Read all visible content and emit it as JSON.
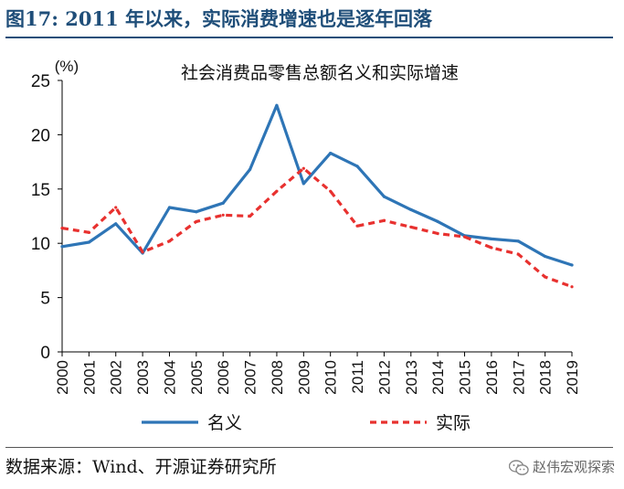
{
  "figure": {
    "label": "图17:",
    "title": "2011 年以来，实际消费增速也是逐年回落",
    "source": "数据来源：Wind、开源证券研究所",
    "watermark": "赵伟宏观探索"
  },
  "colors": {
    "title": "#1f4e79",
    "nominal": "#2e75b6",
    "real": "#e8312f",
    "axis": "#000000"
  },
  "chart_data": {
    "type": "line",
    "title": "社会消费品零售总额名义和实际增速",
    "unit_label": "(%)",
    "x": [
      "2000",
      "2001",
      "2002",
      "2003",
      "2004",
      "2005",
      "2006",
      "2007",
      "2008",
      "2009",
      "2010",
      "2011",
      "2012",
      "2013",
      "2014",
      "2015",
      "2016",
      "2017",
      "2018",
      "2019"
    ],
    "ylim": [
      0,
      25
    ],
    "yticks": [
      0,
      5,
      10,
      15,
      20,
      25
    ],
    "grid": false,
    "legend_position": "bottom",
    "series": [
      {
        "name": "名义",
        "style": "solid",
        "values": [
          9.7,
          10.1,
          11.8,
          9.1,
          13.3,
          12.9,
          13.7,
          16.8,
          22.7,
          15.5,
          18.3,
          17.1,
          14.3,
          13.1,
          12.0,
          10.7,
          10.4,
          10.2,
          8.8,
          8.0
        ]
      },
      {
        "name": "实际",
        "style": "dashed",
        "values": [
          11.4,
          11.0,
          13.3,
          9.2,
          10.2,
          12.0,
          12.6,
          12.5,
          14.8,
          16.9,
          14.8,
          11.6,
          12.1,
          11.5,
          10.9,
          10.6,
          9.6,
          9.0,
          6.9,
          6.0
        ]
      }
    ]
  }
}
